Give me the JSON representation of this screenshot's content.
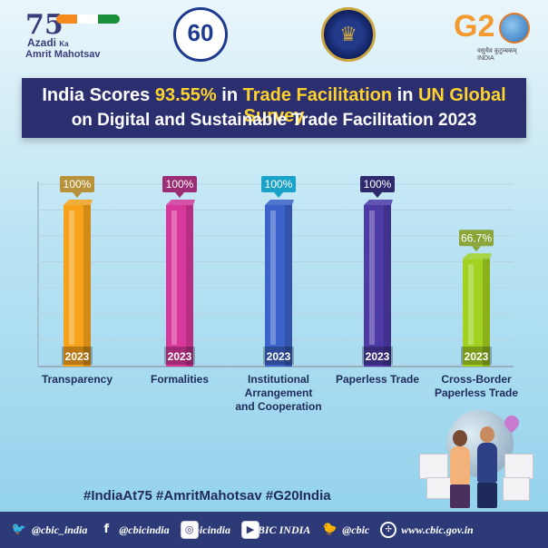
{
  "logos": {
    "azadi_line1": "Azadi",
    "azadi_ka": "Ka",
    "azadi_line2": "Amrit Mahotsav",
    "cbic60": "60",
    "g20_text": "G2",
    "g20_sub": "वसुधैव कुटुम्बकम् INDIA"
  },
  "banner": {
    "line1_prefix": "India Scores ",
    "line1_score": "93.55%",
    "line1_in": " in ",
    "line1_tf": "Trade Facilitation",
    "line1_in2": " in ",
    "line1_survey": "UN Global Survey",
    "line2": "on Digital and Sustainable Trade Facilitation 2023"
  },
  "chart_data": {
    "type": "bar",
    "categories": [
      "Transparency",
      "Formalities",
      "Institutional Arrangement and Cooperation",
      "Paperless Trade",
      "Cross-Border Paperless Trade"
    ],
    "category_lines": [
      [
        "Transparency"
      ],
      [
        "Formalities"
      ],
      [
        "Institutional",
        "Arrangement",
        "and Cooperation"
      ],
      [
        "Paperless Trade"
      ],
      [
        "Cross-Border",
        "Paperless Trade"
      ]
    ],
    "values": [
      100,
      100,
      100,
      100,
      66.7
    ],
    "value_labels": [
      "100%",
      "100%",
      "100%",
      "100%",
      "66.7%"
    ],
    "base_label": "2023",
    "ylim": [
      0,
      100
    ],
    "grid": true,
    "colors": [
      "#f7a21b",
      "#d8379b",
      "#3b63c9",
      "#4d3aa5",
      "#a3d122"
    ],
    "label_colors": [
      "#b8923a",
      "#9c2d74",
      "#1aa2c8",
      "#2f2a6e",
      "#8aa53a"
    ]
  },
  "hashtags": "#IndiaAt75  #AmritMahotsav  #G20India",
  "footer": {
    "twitter": "@cbic_india",
    "facebook": "@cbicindia",
    "instagram": "@cbicindia",
    "youtube": "@CBIC INDIA",
    "koo": "@cbic",
    "web": "www.cbic.gov.in"
  }
}
